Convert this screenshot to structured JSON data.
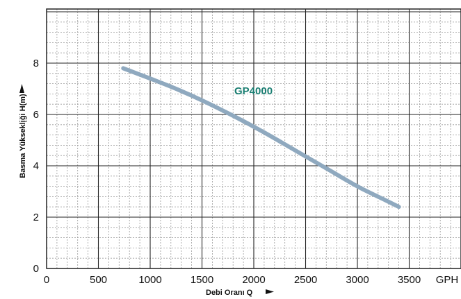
{
  "chart_data": {
    "type": "line",
    "xlabel": "Debi Oranı Q",
    "ylabel": "Basma Yükseklįği H(m)",
    "x_unit": "GPH",
    "xlim": [
      0,
      4000
    ],
    "ylim": [
      0,
      10
    ],
    "x_ticks": [
      0,
      500,
      1000,
      1500,
      2000,
      2500,
      3000,
      3500
    ],
    "y_ticks": [
      0,
      2,
      4,
      6,
      8
    ],
    "grid": true,
    "series": [
      {
        "name": "GP4000",
        "color": "#8fa9bf",
        "x": [
          740,
          1000,
          1250,
          1500,
          1800,
          2100,
          2400,
          2700,
          3000,
          3250,
          3400
        ],
        "y": [
          7.8,
          7.4,
          7.0,
          6.55,
          5.95,
          5.3,
          4.6,
          3.9,
          3.2,
          2.7,
          2.4
        ]
      }
    ]
  }
}
